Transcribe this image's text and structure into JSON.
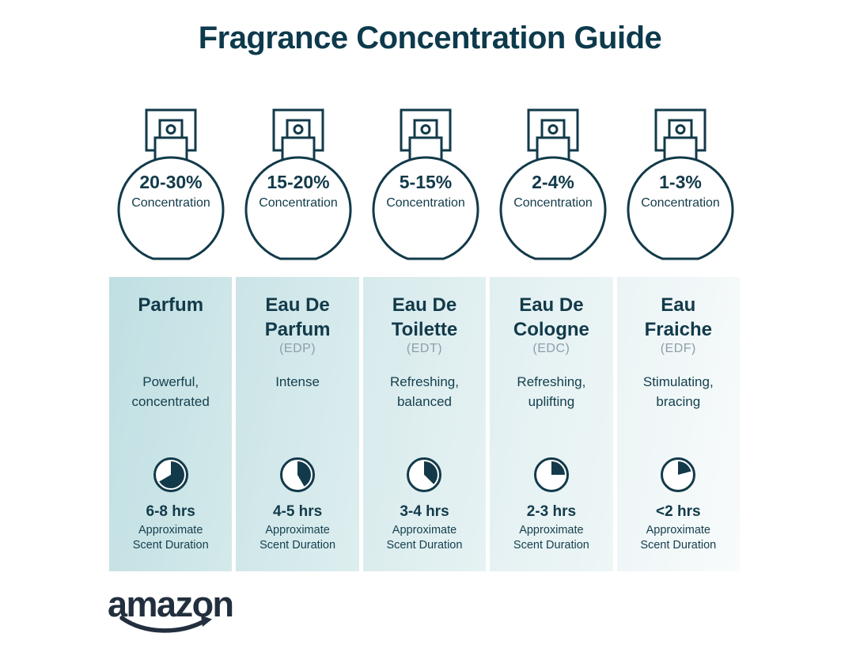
{
  "title": "Fragrance Concentration Guide",
  "colors": {
    "title_text": "#0d3a4c",
    "ink": "#123a4a",
    "muted_gray": "#8d9ea8",
    "bottle_fill": "#b8dce1",
    "logo": "#232f3e",
    "background": "#ffffff"
  },
  "bottles": [
    {
      "icon": "perfume-spray-bottle-icon",
      "percent": "20-30%",
      "label": "Concentration",
      "fill_pct": 44
    },
    {
      "icon": "perfume-spray-bottle-icon",
      "percent": "15-20%",
      "label": "Concentration",
      "fill_pct": 34
    },
    {
      "icon": "perfume-spray-bottle-icon",
      "percent": "5-15%",
      "label": "Concentration",
      "fill_pct": 25
    },
    {
      "icon": "perfume-spray-bottle-icon",
      "percent": "2-4%",
      "label": "Concentration",
      "fill_pct": 16
    },
    {
      "icon": "perfume-spray-bottle-icon",
      "percent": "1-3%",
      "label": "Concentration",
      "fill_pct": 9
    }
  ],
  "columns": [
    {
      "name": "Parfum",
      "abbr": "",
      "desc": "Powerful, concentrated",
      "icon": "clock-pie-icon",
      "pie_deg": 240,
      "duration": "6-8 hrs",
      "duration_label": "Approximate Scent Duration",
      "bg": [
        "#c0dfe3",
        "#d3e9ea"
      ]
    },
    {
      "name": "Eau De Parfum",
      "abbr": "(EDP)",
      "desc": "Intense",
      "icon": "clock-pie-icon",
      "pie_deg": 150,
      "duration": "4-5 hrs",
      "duration_label": "Approximate Scent Duration",
      "bg": [
        "#cbe4e7",
        "#ddeeef"
      ]
    },
    {
      "name": "Eau De Toilette",
      "abbr": "(EDT)",
      "desc": "Refreshing, balanced",
      "icon": "clock-pie-icon",
      "pie_deg": 135,
      "duration": "3-4 hrs",
      "duration_label": "Approximate Scent Duration",
      "bg": [
        "#d7eaec",
        "#e6f2f3"
      ]
    },
    {
      "name": "Eau De Cologne",
      "abbr": "(EDC)",
      "desc": "Refreshing, uplifting",
      "icon": "clock-pie-icon",
      "pie_deg": 90,
      "duration": "2-3 hrs",
      "duration_label": "Approximate Scent Duration",
      "bg": [
        "#e1eff1",
        "#eef6f6"
      ]
    },
    {
      "name": "Eau Fraiche",
      "abbr": "(EDF)",
      "desc": "Stimulating, bracing",
      "icon": "clock-pie-icon",
      "pie_deg": 75,
      "duration": "<2 hrs",
      "duration_label": "Approximate Scent Duration",
      "bg": [
        "#ebf4f5",
        "#f8fbfb"
      ]
    }
  ],
  "brand": {
    "logo_text": "amazon",
    "smile_icon": "amazon-smile-arrow-icon"
  }
}
